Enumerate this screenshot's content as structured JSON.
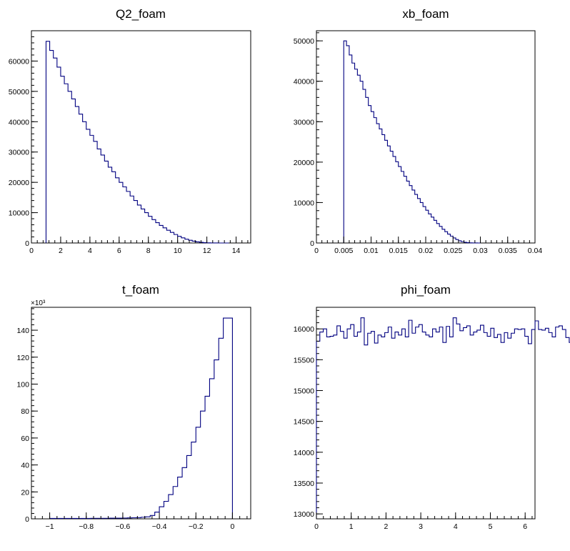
{
  "colors": {
    "line": "#000080",
    "axis": "#000000",
    "background": "#ffffff"
  },
  "chart_data": [
    {
      "type": "histogram",
      "title": "Q2_foam",
      "xlim": [
        0,
        15
      ],
      "ylim": [
        0,
        70000
      ],
      "xticks": [
        0,
        2,
        4,
        6,
        8,
        10,
        12,
        14
      ],
      "xtick_labels": [
        "0",
        "2",
        "4",
        "6",
        "8",
        "10",
        "12",
        "14"
      ],
      "yticks": [
        0,
        10000,
        20000,
        30000,
        40000,
        50000,
        60000
      ],
      "ytick_labels": [
        "0",
        "10000",
        "20000",
        "30000",
        "40000",
        "50000",
        "60000"
      ],
      "exponent_label": "",
      "bins": {
        "start": 1.0,
        "width": 0.25
      },
      "values": [
        66500,
        63500,
        61000,
        58000,
        55000,
        52500,
        50000,
        47500,
        45000,
        42500,
        40000,
        37500,
        35500,
        33500,
        31000,
        29000,
        27000,
        25000,
        23500,
        21500,
        20000,
        18500,
        17000,
        15500,
        14000,
        12500,
        11200,
        10000,
        8800,
        7700,
        6700,
        5800,
        5000,
        4200,
        3500,
        2800,
        2200,
        1700,
        1250,
        900,
        600,
        380,
        220,
        110,
        50,
        20,
        8,
        3,
        1,
        0
      ]
    },
    {
      "type": "histogram",
      "title": "xb_foam",
      "xlim": [
        0,
        0.04
      ],
      "ylim": [
        0,
        52500
      ],
      "xticks": [
        0,
        0.005,
        0.01,
        0.015,
        0.02,
        0.025,
        0.03,
        0.035,
        0.04
      ],
      "xtick_labels": [
        "0",
        "0.005",
        "0.01",
        "0.015",
        "0.02",
        "0.025",
        "0.03",
        "0.035",
        "0.04"
      ],
      "yticks": [
        0,
        10000,
        20000,
        30000,
        40000,
        50000
      ],
      "ytick_labels": [
        "0",
        "10000",
        "20000",
        "30000",
        "40000",
        "50000"
      ],
      "exponent_label": "",
      "bins": {
        "start": 0.005,
        "width": 0.0005
      },
      "values": [
        50000,
        48800,
        46500,
        44500,
        43000,
        41500,
        40000,
        38000,
        36000,
        34000,
        32500,
        31000,
        29500,
        28200,
        26800,
        25400,
        24000,
        22700,
        21400,
        20100,
        18900,
        17700,
        16500,
        15300,
        14200,
        13100,
        12000,
        11000,
        10000,
        9000,
        8100,
        7200,
        6400,
        5600,
        4800,
        4100,
        3400,
        2800,
        2200,
        1700,
        1250,
        850,
        550,
        330,
        170,
        80,
        30,
        10,
        3,
        0
      ]
    },
    {
      "type": "histogram",
      "title": "t_foam",
      "xlim": [
        -1.1,
        0.1
      ],
      "ylim": [
        0,
        157
      ],
      "xticks": [
        -1,
        -0.8,
        -0.6,
        -0.4,
        -0.2,
        0
      ],
      "xtick_labels": [
        "−1",
        "−0.8",
        "−0.6",
        "−0.4",
        "−0.2",
        "0"
      ],
      "yticks": [
        0,
        20,
        40,
        60,
        80,
        100,
        120,
        140
      ],
      "ytick_labels": [
        "0",
        "20",
        "40",
        "60",
        "80",
        "100",
        "120",
        "140"
      ],
      "exponent_label": "×10³",
      "bins": {
        "start": -1.0,
        "width": 0.025
      },
      "values": [
        0.3,
        0.3,
        0.3,
        0.3,
        0.3,
        0.3,
        0.3,
        0.3,
        0.3,
        0.4,
        0.4,
        0.4,
        0.4,
        0.5,
        0.5,
        0.5,
        0.6,
        0.7,
        0.8,
        0.9,
        1.2,
        1.5,
        2.5,
        5,
        9,
        13,
        18,
        24,
        31,
        38,
        47,
        57,
        68,
        80,
        91,
        104,
        118,
        134,
        149,
        149
      ]
    },
    {
      "type": "histogram",
      "title": "phi_foam",
      "xlim": [
        0,
        6.2832
      ],
      "ylim": [
        12920,
        16350
      ],
      "xticks": [
        0,
        1,
        2,
        3,
        4,
        5,
        6
      ],
      "xtick_labels": [
        "0",
        "1",
        "2",
        "3",
        "4",
        "5",
        "6"
      ],
      "yticks": [
        13000,
        13500,
        14000,
        14500,
        15000,
        15500,
        16000
      ],
      "ytick_labels": [
        "13000",
        "13500",
        "14000",
        "14500",
        "15000",
        "15500",
        "16000"
      ],
      "exponent_label": "",
      "bins": {
        "start": 0,
        "width": 0.0982
      },
      "values": [
        15800,
        15950,
        16000,
        15870,
        15880,
        15900,
        16050,
        15960,
        15850,
        16000,
        16070,
        15880,
        15950,
        16180,
        15740,
        15930,
        15960,
        15770,
        15900,
        15870,
        15940,
        16030,
        15850,
        15950,
        15900,
        16000,
        15870,
        16140,
        15930,
        16030,
        16070,
        15950,
        15900,
        15870,
        16000,
        15950,
        16030,
        15780,
        16040,
        15870,
        16180,
        16080,
        15970,
        16020,
        16050,
        15900,
        15950,
        15980,
        16060,
        15940,
        15880,
        16010,
        15860,
        15910,
        15780,
        15940,
        15850,
        15930,
        16000,
        15990,
        16000,
        15880,
        15760,
        15990,
        16130,
        15990,
        15980,
        16010,
        15940,
        15870,
        16030,
        16050,
        15990,
        15860,
        15780,
        15900,
        15870,
        15920,
        15930,
        16010,
        15910,
        15830,
        15930,
        15990,
        15930,
        16020,
        15850,
        15750,
        15900,
        15960,
        15860,
        15900,
        15940,
        15810,
        15930,
        16000,
        15930,
        15920,
        15880,
        16000,
        15980,
        16030,
        16050,
        15750,
        15960,
        15960,
        16000,
        15870,
        15990,
        16130,
        15960,
        15980,
        15990,
        16030,
        16020,
        16040,
        13000
      ]
    }
  ]
}
